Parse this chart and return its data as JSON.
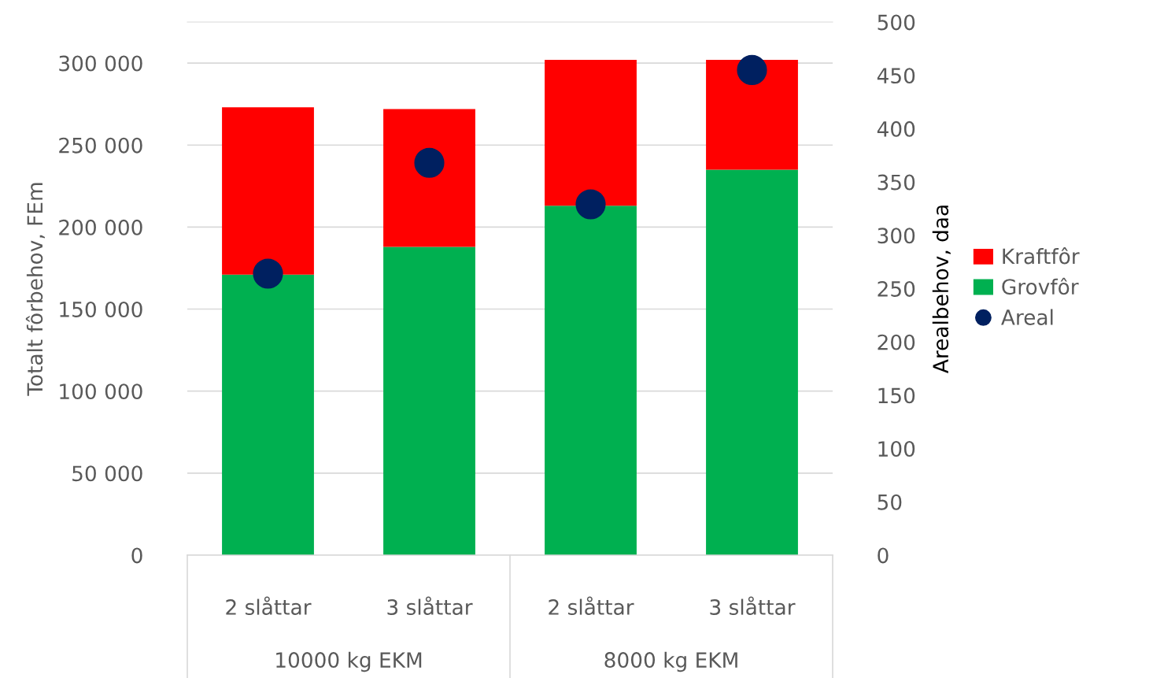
{
  "chart_data": {
    "type": "bar",
    "stacked": true,
    "ylabel": "Totalt fôrbehov, FEm",
    "y2label": "Arealbehov, daa",
    "categories": [
      "2 slåttar",
      "3 slåttar",
      "2 slåttar",
      "3 slåttar"
    ],
    "annotations": [
      "10000 kg EKM",
      "8000 kg EKM"
    ],
    "series": [
      {
        "name": "Grovfôr",
        "color": "#00b050",
        "values": [
          171000,
          188000,
          213000,
          235000
        ]
      },
      {
        "name": "Kraftfôr",
        "color": "#ff0000",
        "values": [
          102000,
          84000,
          89000,
          67000
        ]
      },
      {
        "name": "Areal",
        "type": "scatter",
        "axis": "y2",
        "color": "#002060",
        "values": [
          264,
          368,
          329,
          455
        ]
      }
    ],
    "ylim": [
      0,
      325000
    ],
    "yticks": [
      0,
      {
        "value": 50000,
        "label": "50 000"
      },
      {
        "value": 100000,
        "label": "100 000"
      },
      {
        "value": 150000,
        "label": "150 000"
      },
      {
        "value": 200000,
        "label": "200 000"
      },
      {
        "value": 250000,
        "label": "250 000"
      },
      {
        "value": 300000,
        "label": "300 000"
      }
    ],
    "y2lim": [
      0,
      500
    ],
    "y2ticks": [
      0,
      50,
      100,
      150,
      200,
      250,
      300,
      350,
      400,
      450,
      500
    ],
    "grid": "y",
    "legend": "right",
    "marker": "circle"
  }
}
